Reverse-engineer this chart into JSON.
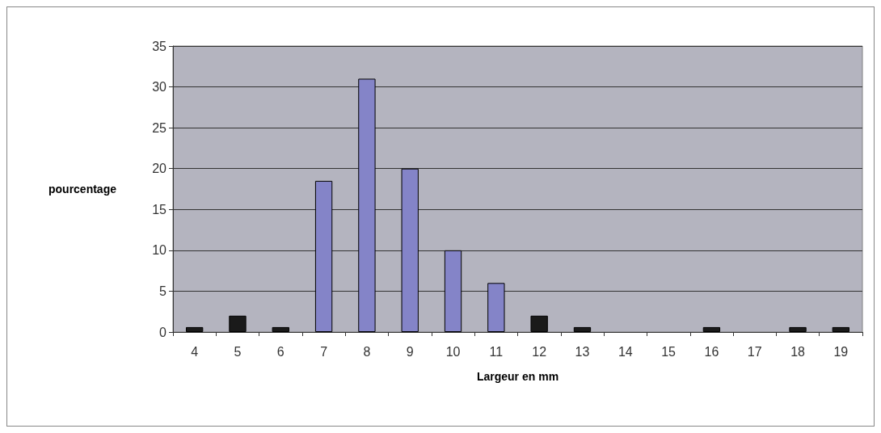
{
  "chart_data": {
    "type": "bar",
    "xlabel": "Largeur en mm",
    "ylabel": "pourcentage",
    "categories": [
      "4",
      "5",
      "6",
      "7",
      "8",
      "9",
      "10",
      "11",
      "12",
      "13",
      "14",
      "15",
      "16",
      "17",
      "18",
      "19"
    ],
    "values": [
      0.6,
      2,
      0.6,
      18.5,
      31,
      20,
      10,
      6,
      2,
      0.6,
      0,
      0,
      0.6,
      0,
      0.6,
      0.6
    ],
    "colors": [
      "#1a1a1a",
      "#1a1a1a",
      "#1a1a1a",
      "#8484c8",
      "#8484c8",
      "#8484c8",
      "#8484c8",
      "#8484c8",
      "#1a1a1a",
      "#1a1a1a",
      "#1a1a1a",
      "#1a1a1a",
      "#1a1a1a",
      "#1a1a1a",
      "#1a1a1a",
      "#1a1a1a"
    ],
    "ylim": [
      0,
      35
    ],
    "yticks": [
      0,
      5,
      10,
      15,
      20,
      25,
      30,
      35
    ],
    "grid": "y"
  }
}
